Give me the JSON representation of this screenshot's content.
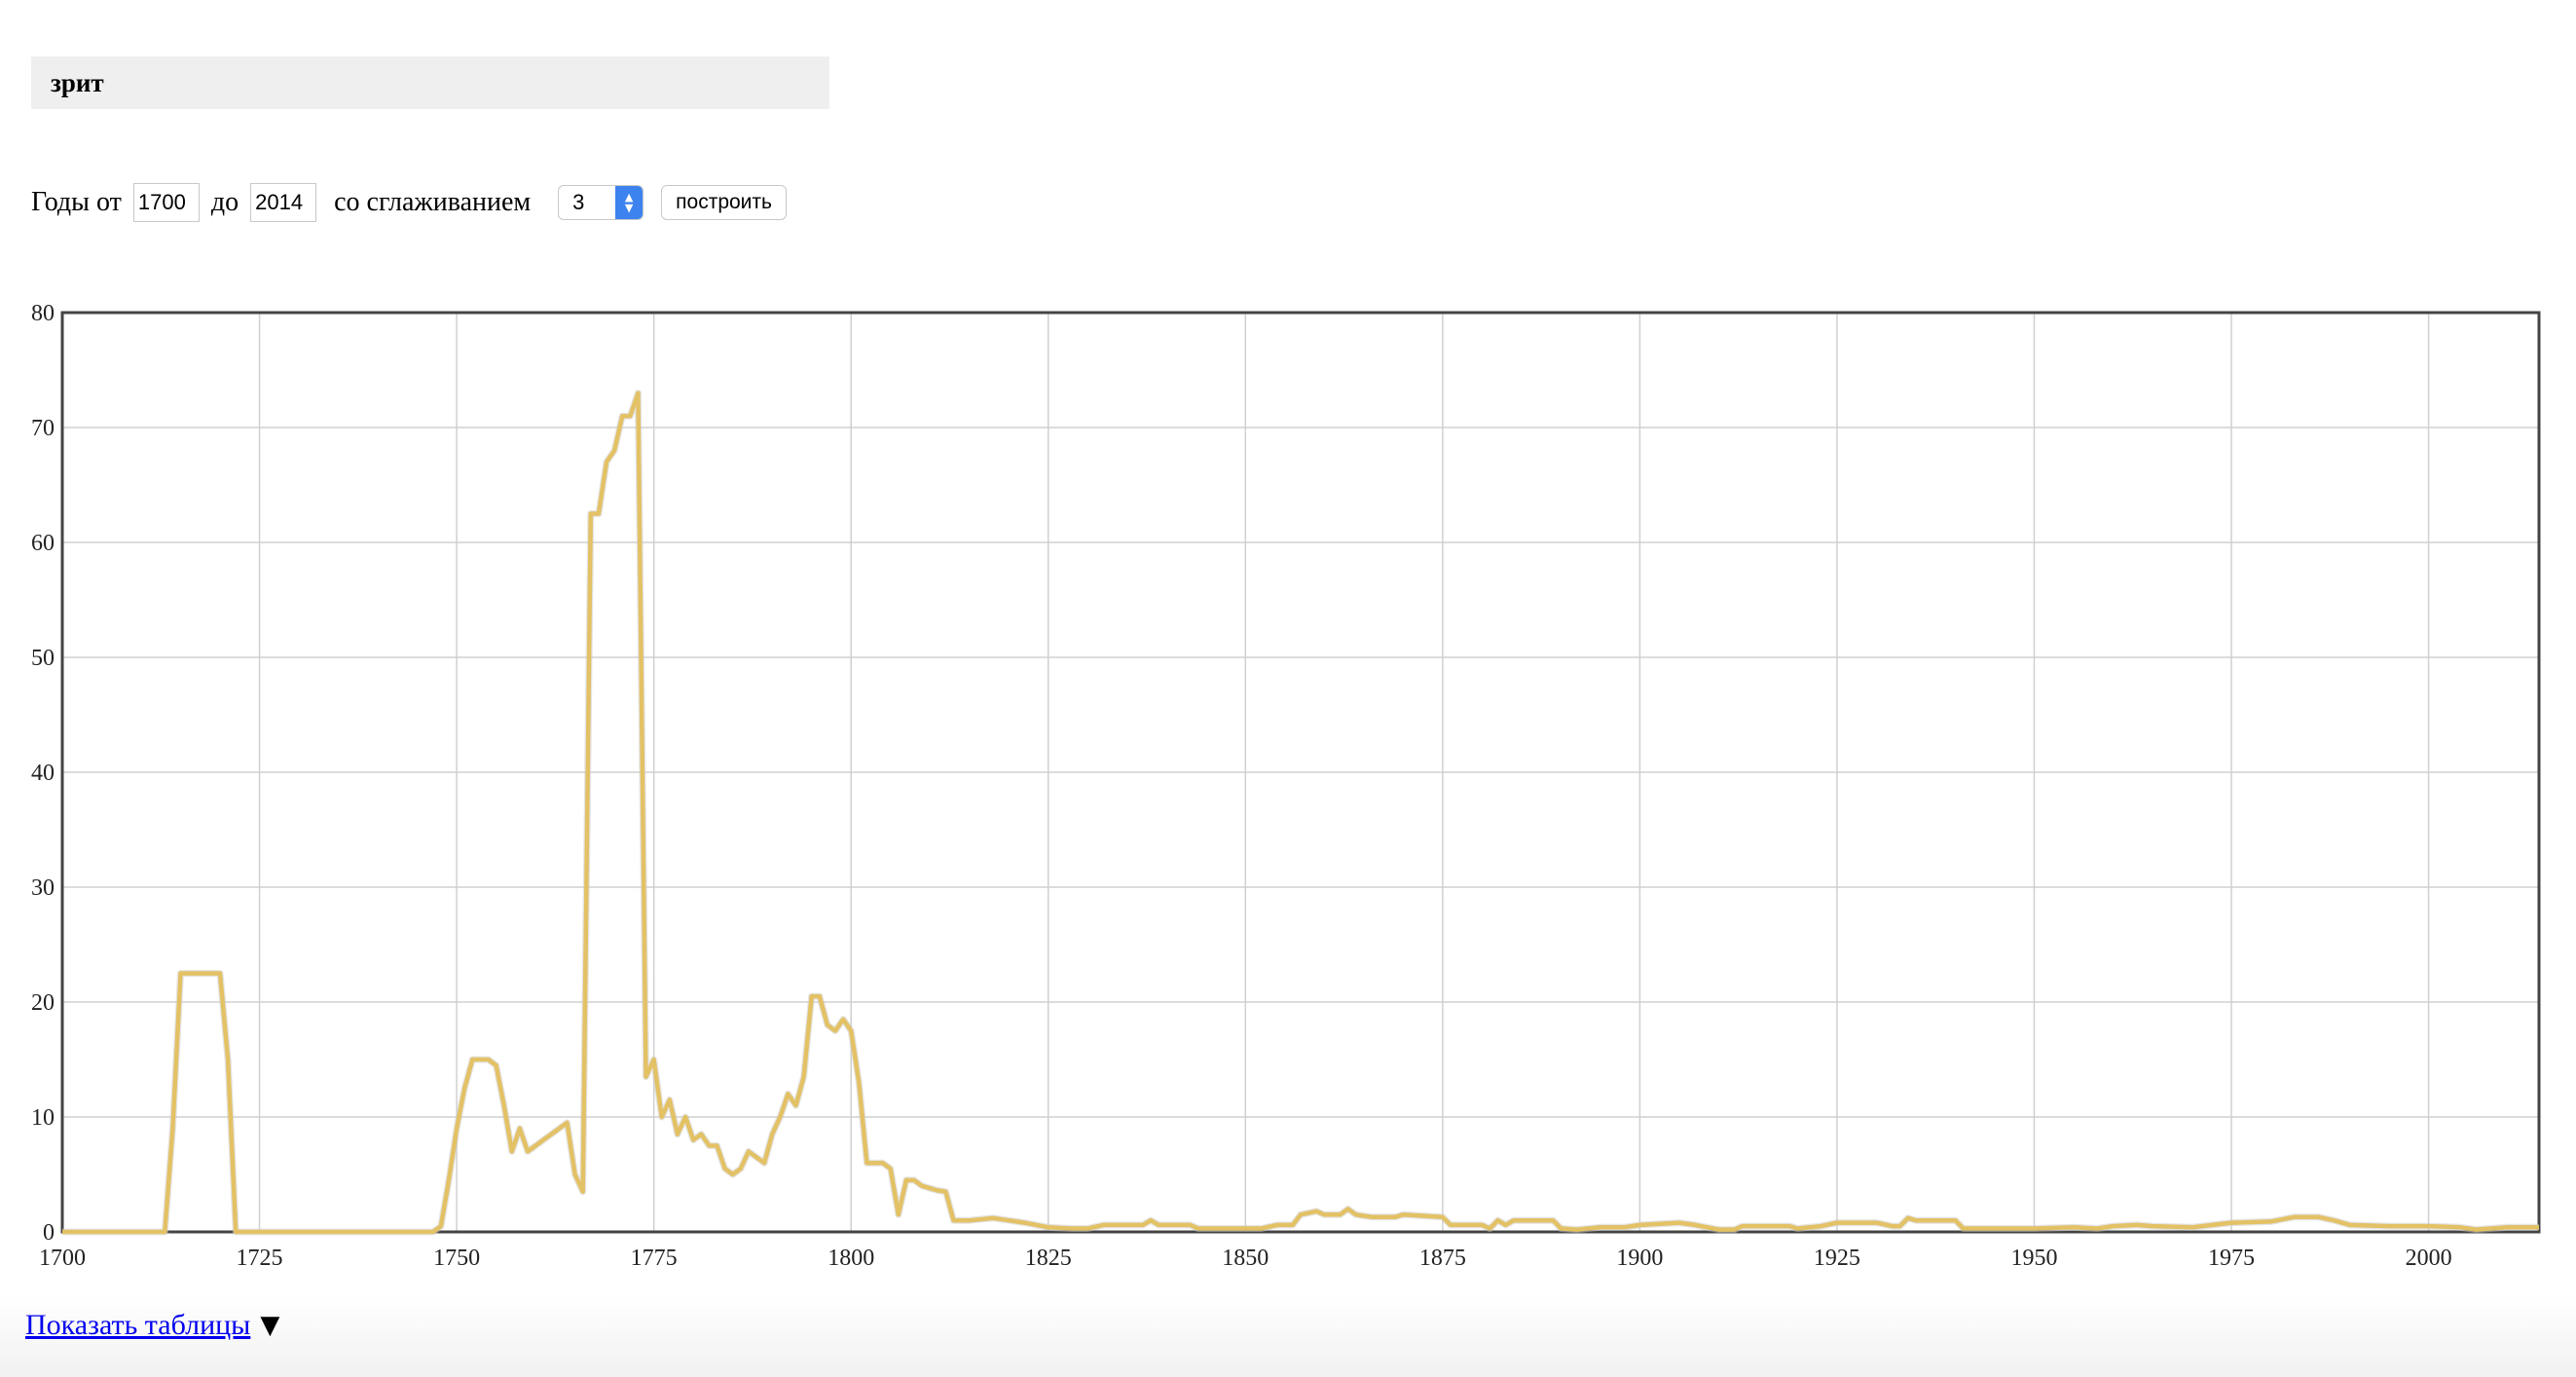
{
  "query": {
    "text": "зрит"
  },
  "controls": {
    "years_from_label": "Годы от",
    "year_from": "1700",
    "to_label": "до",
    "year_to": "2014",
    "smoothing_label": "со сглаживанием",
    "smoothing_value": "3",
    "build_label": "построить"
  },
  "footer": {
    "show_tables_label": "Показать таблицы",
    "toggle_icon": "▼"
  },
  "colors": {
    "line": "#e3c165",
    "grid": "#d0d0d0",
    "frame": "#444444"
  },
  "chart_data": {
    "type": "line",
    "xlim": [
      1700,
      2014
    ],
    "ylim": [
      0,
      80
    ],
    "x_ticks": [
      1700,
      1725,
      1750,
      1775,
      1800,
      1825,
      1850,
      1875,
      1900,
      1925,
      1950,
      1975,
      2000
    ],
    "y_ticks": [
      0,
      10,
      20,
      30,
      40,
      50,
      60,
      70,
      80
    ],
    "grid": true,
    "series": [
      {
        "color": "#e3c165",
        "points": [
          [
            1700,
            0
          ],
          [
            1713,
            0
          ],
          [
            1714,
            9
          ],
          [
            1715,
            22.5
          ],
          [
            1716,
            22.5
          ],
          [
            1717,
            22.5
          ],
          [
            1718,
            22.5
          ],
          [
            1719,
            22.5
          ],
          [
            1720,
            22.5
          ],
          [
            1721,
            15
          ],
          [
            1722,
            0
          ],
          [
            1747,
            0
          ],
          [
            1748,
            0.5
          ],
          [
            1749,
            4.5
          ],
          [
            1750,
            9
          ],
          [
            1751,
            12.5
          ],
          [
            1752,
            15
          ],
          [
            1753,
            15
          ],
          [
            1754,
            15
          ],
          [
            1755,
            14.5
          ],
          [
            1756,
            11
          ],
          [
            1757,
            7
          ],
          [
            1758,
            9
          ],
          [
            1759,
            7
          ],
          [
            1760,
            7.5
          ],
          [
            1761,
            8
          ],
          [
            1762,
            8.5
          ],
          [
            1763,
            9
          ],
          [
            1764,
            9.5
          ],
          [
            1765,
            5
          ],
          [
            1766,
            3.5
          ],
          [
            1767,
            62.5
          ],
          [
            1768,
            62.5
          ],
          [
            1769,
            67
          ],
          [
            1770,
            68
          ],
          [
            1771,
            71
          ],
          [
            1772,
            71
          ],
          [
            1773,
            73
          ],
          [
            1774,
            13.5
          ],
          [
            1775,
            15
          ],
          [
            1776,
            10
          ],
          [
            1777,
            11.5
          ],
          [
            1778,
            8.5
          ],
          [
            1779,
            10
          ],
          [
            1780,
            8
          ],
          [
            1781,
            8.5
          ],
          [
            1782,
            7.5
          ],
          [
            1783,
            7.5
          ],
          [
            1784,
            5.5
          ],
          [
            1785,
            5
          ],
          [
            1786,
            5.5
          ],
          [
            1787,
            7
          ],
          [
            1788,
            6.5
          ],
          [
            1789,
            6
          ],
          [
            1790,
            8.5
          ],
          [
            1791,
            10
          ],
          [
            1792,
            12
          ],
          [
            1793,
            11
          ],
          [
            1794,
            13.5
          ],
          [
            1795,
            20.5
          ],
          [
            1796,
            20.5
          ],
          [
            1797,
            18
          ],
          [
            1798,
            17.5
          ],
          [
            1799,
            18.5
          ],
          [
            1800,
            17.5
          ],
          [
            1801,
            13
          ],
          [
            1802,
            6
          ],
          [
            1803,
            6
          ],
          [
            1804,
            6
          ],
          [
            1805,
            5.5
          ],
          [
            1806,
            1.5
          ],
          [
            1807,
            4.5
          ],
          [
            1808,
            4.5
          ],
          [
            1809,
            4
          ],
          [
            1810,
            3.8
          ],
          [
            1811,
            3.6
          ],
          [
            1812,
            3.5
          ],
          [
            1813,
            1
          ],
          [
            1815,
            1
          ],
          [
            1818,
            1.2
          ],
          [
            1820,
            1
          ],
          [
            1822,
            0.8
          ],
          [
            1825,
            0.4
          ],
          [
            1828,
            0.3
          ],
          [
            1830,
            0.3
          ],
          [
            1832,
            0.6
          ],
          [
            1837,
            0.6
          ],
          [
            1838,
            1
          ],
          [
            1839,
            0.6
          ],
          [
            1843,
            0.6
          ],
          [
            1844,
            0.3
          ],
          [
            1852,
            0.3
          ],
          [
            1854,
            0.6
          ],
          [
            1856,
            0.6
          ],
          [
            1857,
            1.5
          ],
          [
            1859,
            1.8
          ],
          [
            1860,
            1.5
          ],
          [
            1862,
            1.5
          ],
          [
            1863,
            2
          ],
          [
            1864,
            1.5
          ],
          [
            1866,
            1.3
          ],
          [
            1869,
            1.3
          ],
          [
            1870,
            1.5
          ],
          [
            1875,
            1.3
          ],
          [
            1876,
            0.6
          ],
          [
            1880,
            0.6
          ],
          [
            1881,
            0.3
          ],
          [
            1882,
            1
          ],
          [
            1883,
            0.6
          ],
          [
            1884,
            1
          ],
          [
            1889,
            1
          ],
          [
            1890,
            0.3
          ],
          [
            1892,
            0.2
          ],
          [
            1895,
            0.4
          ],
          [
            1898,
            0.4
          ],
          [
            1900,
            0.6
          ],
          [
            1905,
            0.8
          ],
          [
            1907,
            0.6
          ],
          [
            1910,
            0.2
          ],
          [
            1912,
            0.2
          ],
          [
            1913,
            0.5
          ],
          [
            1919,
            0.5
          ],
          [
            1920,
            0.3
          ],
          [
            1923,
            0.5
          ],
          [
            1925,
            0.8
          ],
          [
            1930,
            0.8
          ],
          [
            1932,
            0.5
          ],
          [
            1933,
            0.5
          ],
          [
            1934,
            1.2
          ],
          [
            1935,
            1
          ],
          [
            1940,
            1
          ],
          [
            1941,
            0.3
          ],
          [
            1945,
            0.3
          ],
          [
            1950,
            0.3
          ],
          [
            1955,
            0.4
          ],
          [
            1958,
            0.3
          ],
          [
            1960,
            0.5
          ],
          [
            1963,
            0.6
          ],
          [
            1965,
            0.5
          ],
          [
            1970,
            0.4
          ],
          [
            1975,
            0.8
          ],
          [
            1980,
            0.9
          ],
          [
            1983,
            1.3
          ],
          [
            1986,
            1.3
          ],
          [
            1988,
            1
          ],
          [
            1990,
            0.6
          ],
          [
            1995,
            0.5
          ],
          [
            2000,
            0.5
          ],
          [
            2004,
            0.4
          ],
          [
            2006,
            0.2
          ],
          [
            2010,
            0.4
          ],
          [
            2014,
            0.4
          ]
        ]
      }
    ]
  }
}
